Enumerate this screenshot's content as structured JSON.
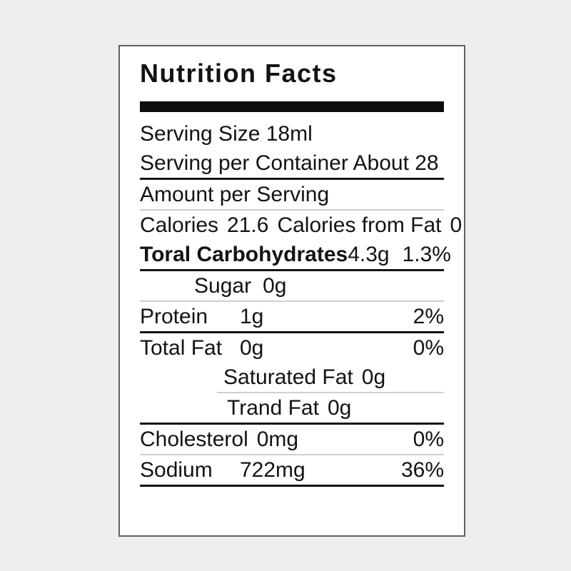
{
  "colors": {
    "page_background": "#eeeeee",
    "panel_background": "#ffffff",
    "panel_border": "#5f5f5f",
    "text": "#131313",
    "title_bar": "#0d0d0d",
    "divider_dark": "#141414",
    "divider_light": "#cfcfcf"
  },
  "label": {
    "title": "Nutrition Facts",
    "serving_size": "Serving Size 18ml",
    "servings_per_container": "Serving per Container About 28",
    "amount_per_serving": "Amount per Serving",
    "calories": {
      "label": "Calories",
      "value": "21.6",
      "from_fat_label": "Calories from Fat",
      "from_fat_value": "0"
    },
    "rows": [
      {
        "label": "Toral Carbohydrates",
        "value": "4.3g",
        "percent": "1.3%"
      },
      {
        "label": "Sugar",
        "value": "0g"
      },
      {
        "label": "Protein",
        "value": "1g",
        "percent": "2%"
      },
      {
        "label": "Total Fat",
        "value": "0g",
        "percent": "0%"
      },
      {
        "label": "Saturated Fat",
        "value": "0g"
      },
      {
        "label": "Trand Fat",
        "value": "0g"
      },
      {
        "label": "Cholesterol",
        "value": "0mg",
        "percent": "0%"
      },
      {
        "label": "Sodium",
        "value": "722mg",
        "percent": "36%"
      }
    ]
  }
}
